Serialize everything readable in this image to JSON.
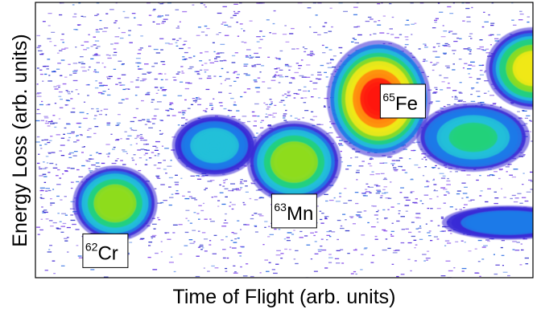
{
  "chart_data": {
    "type": "heatmap",
    "title": "",
    "xlabel": "Time of Flight (arb. units)",
    "ylabel": "Energy Loss (arb. units)",
    "xlim": [
      0,
      1
    ],
    "ylim": [
      0,
      1
    ],
    "grid": false,
    "ticks": false,
    "colorscale": [
      "#ffffff",
      "#3a2bd6",
      "#1e7ae8",
      "#20c0d8",
      "#25d07a",
      "#8edc1f",
      "#f0e818",
      "#ff8a10",
      "#ff1a08"
    ],
    "clusters": [
      {
        "id": "cr62",
        "x": 0.16,
        "y": 0.27,
        "sx": 0.045,
        "sy": 0.11,
        "peak": 0.62,
        "label": {
          "mass": "62",
          "element": "Cr"
        }
      },
      {
        "id": "v60",
        "x": 0.36,
        "y": 0.48,
        "sx": 0.045,
        "sy": 0.09,
        "peak": 0.35
      },
      {
        "id": "mn63",
        "x": 0.52,
        "y": 0.42,
        "sx": 0.05,
        "sy": 0.12,
        "peak": 0.66,
        "label": {
          "mass": "63",
          "element": "Mn"
        }
      },
      {
        "id": "fe65",
        "x": 0.69,
        "y": 0.65,
        "sx": 0.055,
        "sy": 0.17,
        "peak": 1.0,
        "label": {
          "mass": "65",
          "element": "Fe"
        }
      },
      {
        "id": "co66",
        "x": 0.88,
        "y": 0.51,
        "sx": 0.06,
        "sy": 0.1,
        "peak": 0.45
      },
      {
        "id": "ni69",
        "x": 1.0,
        "y": 0.76,
        "sx": 0.05,
        "sy": 0.12,
        "peak": 0.72
      },
      {
        "id": "low-band",
        "x": 0.95,
        "y": 0.2,
        "sx": 0.07,
        "sy": 0.05,
        "peak": 0.22
      }
    ]
  }
}
